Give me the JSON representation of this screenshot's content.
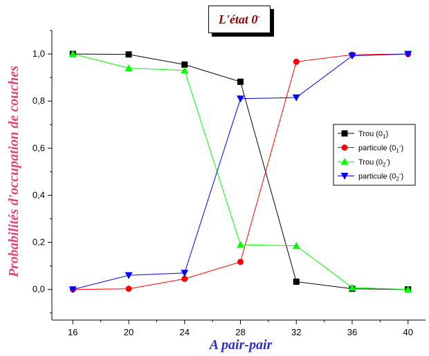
{
  "chart_data": {
    "type": "line",
    "title": "L'état 0",
    "title_superscript": "-",
    "xlabel": "A pair-pair",
    "ylabel": "Probabilités d'occupation de couches",
    "x": [
      16,
      20,
      24,
      28,
      32,
      36,
      40
    ],
    "xlim": [
      14.5,
      41.5
    ],
    "ylim": [
      -0.13,
      1.1
    ],
    "x_ticks": [
      "16",
      "20",
      "24",
      "28",
      "32",
      "36",
      "40"
    ],
    "y_ticks": [
      "0,0",
      "0,2",
      "0,4",
      "0,6",
      "0,8",
      "1,0"
    ],
    "y_tick_values": [
      0,
      0.2,
      0.4,
      0.6,
      0.8,
      1.0
    ],
    "grid": false,
    "legend_position": "right",
    "series": [
      {
        "name": "Trou (0",
        "sub": "1",
        "sup": "",
        "tail": ")",
        "color": "#000000",
        "marker": "square",
        "values": [
          1.0,
          0.998,
          0.955,
          0.882,
          0.033,
          0.003,
          0.0
        ]
      },
      {
        "name": "particule (0",
        "sub": "1",
        "sup": "-",
        "tail": ")",
        "color": "#ff0000",
        "marker": "circle",
        "values": [
          0.0,
          0.003,
          0.045,
          0.117,
          0.967,
          0.997,
          1.0
        ]
      },
      {
        "name": "Trou (0",
        "sub": "2",
        "sup": "-",
        "tail": ")",
        "color": "#00ff00",
        "marker": "triangle-up",
        "values": [
          1.0,
          0.94,
          0.93,
          0.19,
          0.185,
          0.008,
          0.0
        ]
      },
      {
        "name": "particule (0",
        "sub": "2",
        "sup": "-",
        "tail": ")",
        "color": "#0000ff",
        "marker": "triangle-down",
        "values": [
          0.0,
          0.06,
          0.07,
          0.81,
          0.815,
          0.992,
          1.0
        ]
      }
    ]
  }
}
